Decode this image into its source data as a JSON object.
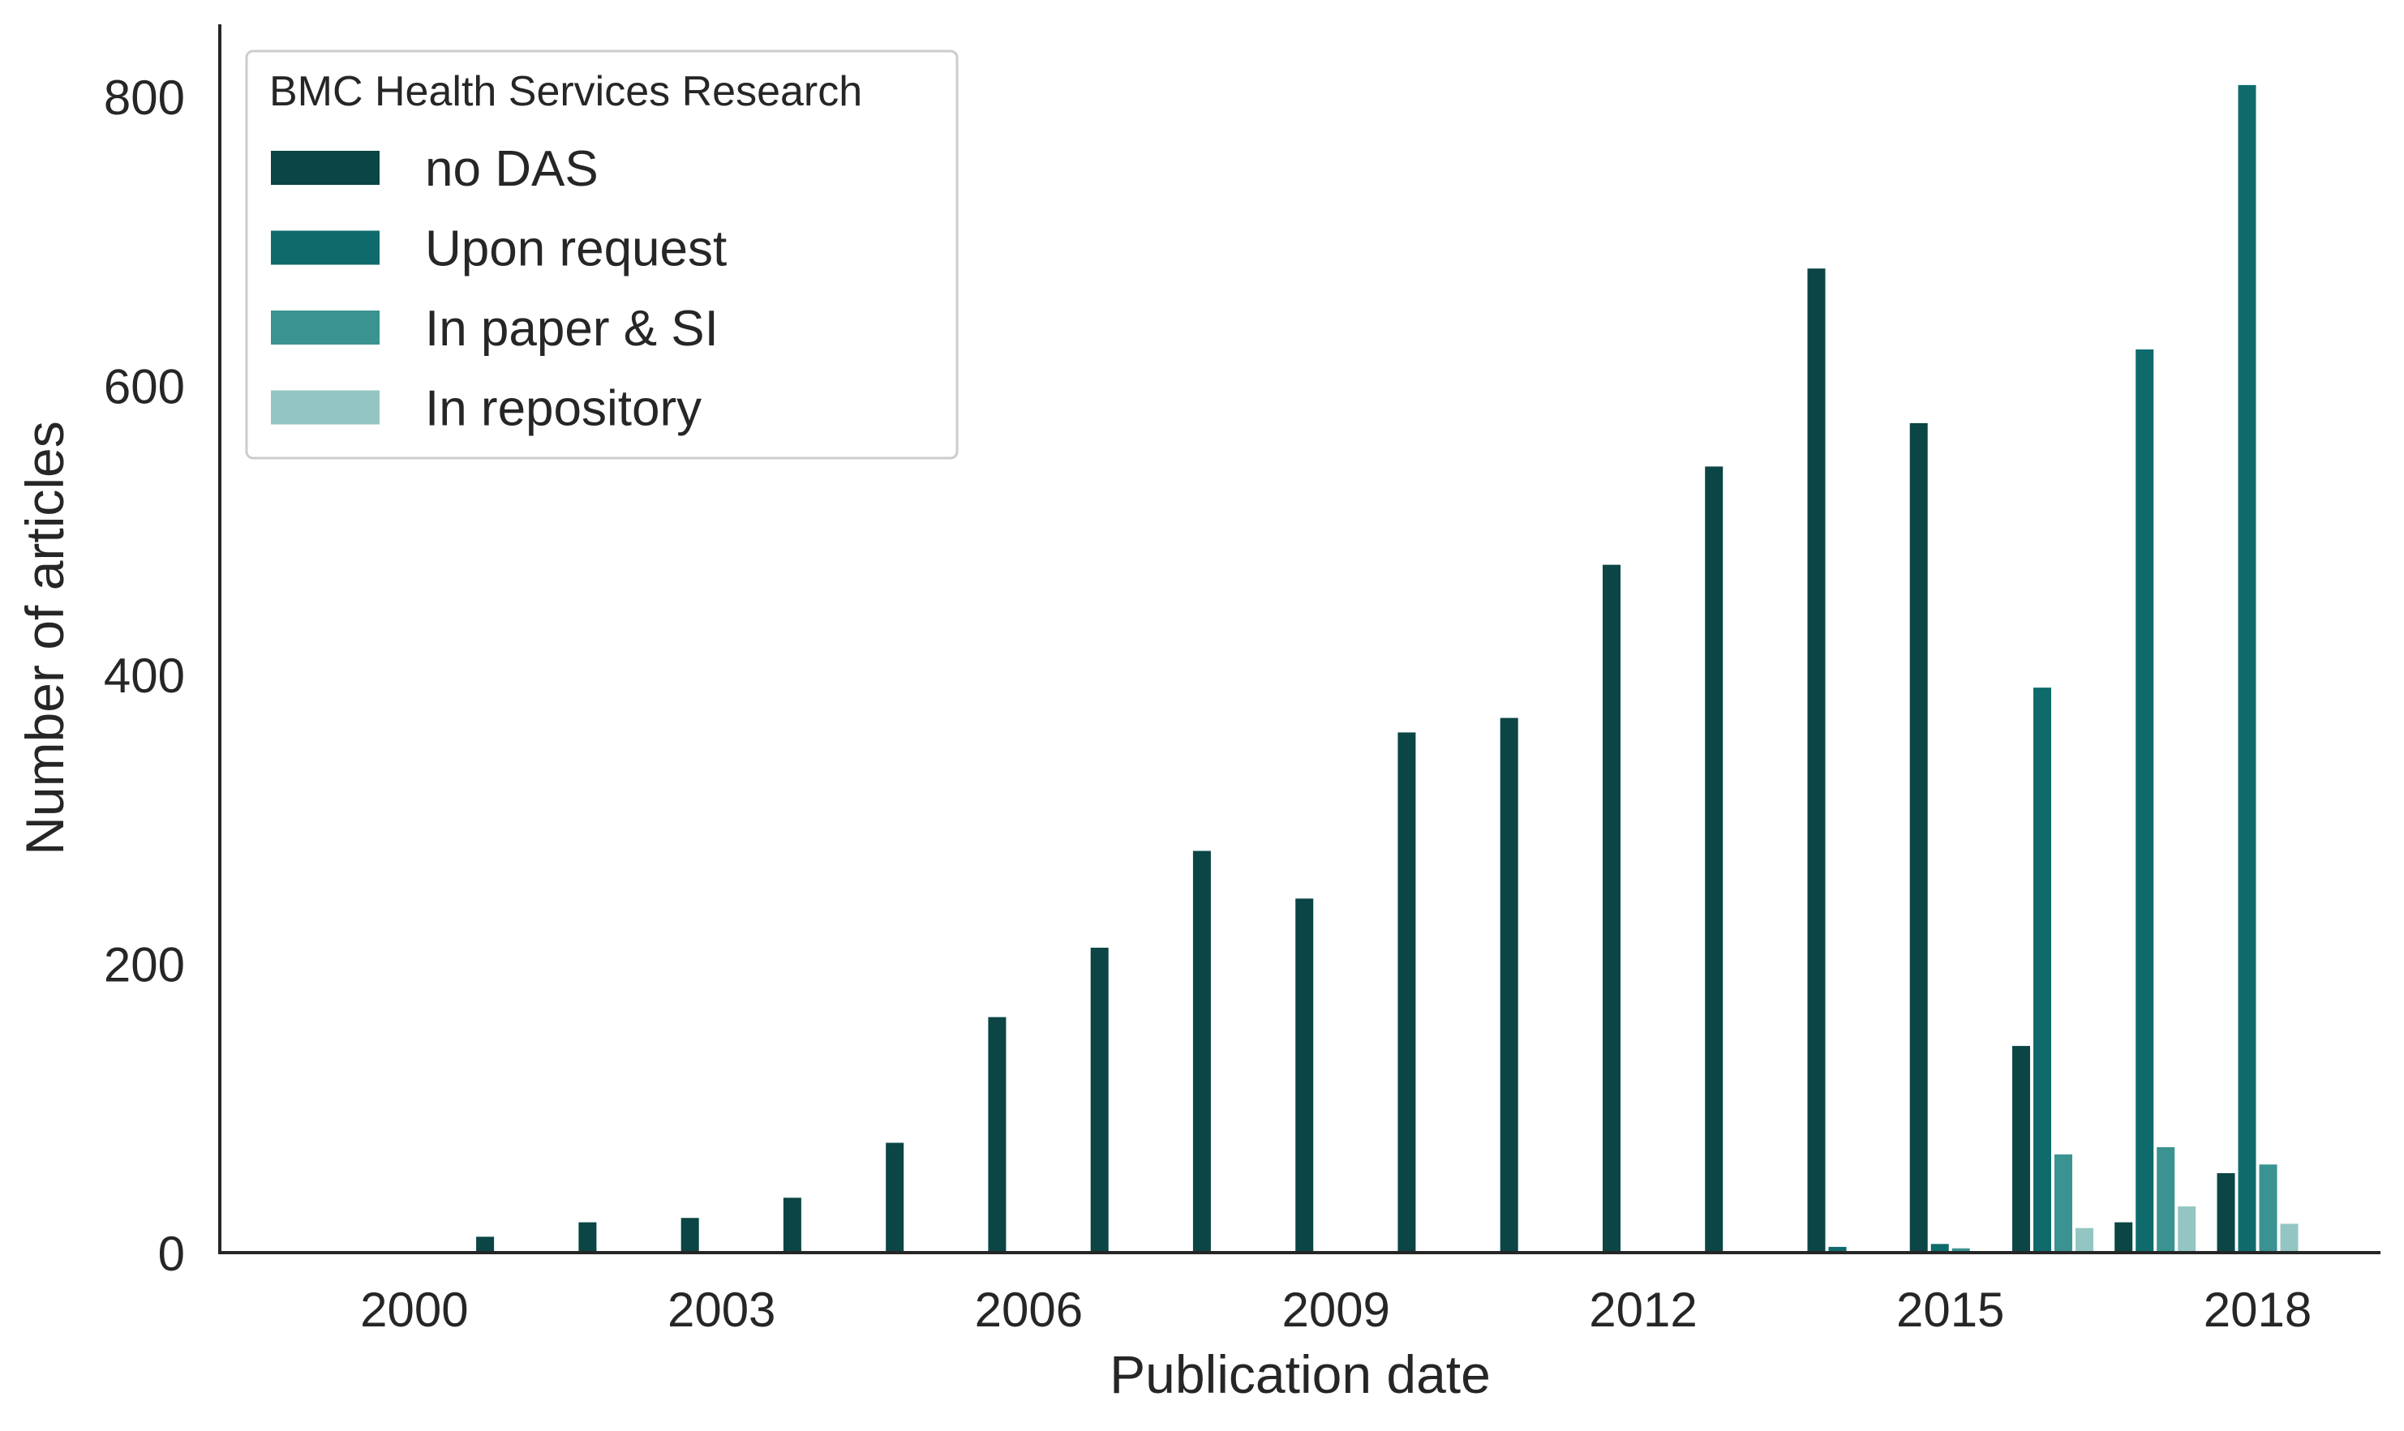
{
  "chart_data": {
    "type": "bar",
    "xlabel": "Publication date",
    "ylabel": "Number of articles",
    "ylim": [
      0,
      850
    ],
    "xlim": [
      1998.1,
      2019.2
    ],
    "grid": false,
    "y_ticks": [
      0,
      200,
      400,
      600,
      800
    ],
    "x_ticks": [
      2000,
      2003,
      2006,
      2009,
      2012,
      2015,
      2018
    ],
    "legend": {
      "title": "BMC Health Services Research",
      "placement": "top-left"
    },
    "series": [
      {
        "name": "no DAS",
        "color": "#0b4545",
        "x": [
          2001,
          2002,
          2003,
          2004,
          2005,
          2006,
          2007,
          2008,
          2009,
          2010,
          2011,
          2012,
          2013,
          2014,
          2015,
          2016,
          2017,
          2018
        ],
        "values": [
          11,
          21,
          24,
          38,
          76,
          163,
          211,
          278,
          245,
          360,
          370,
          476,
          544,
          681,
          574,
          143,
          21,
          55
        ]
      },
      {
        "name": "Upon request",
        "color": "#0f6b6b",
        "x": [
          2014,
          2015,
          2016,
          2017,
          2018
        ],
        "values": [
          4,
          6,
          391,
          625,
          808
        ]
      },
      {
        "name": "In paper & SI",
        "color": "#3a9390",
        "x": [
          2015,
          2016,
          2017,
          2018
        ],
        "values": [
          3,
          68,
          73,
          61
        ]
      },
      {
        "name": "In repository",
        "color": "#93c6c3",
        "x": [
          2016,
          2017,
          2018
        ],
        "values": [
          17,
          32,
          20
        ]
      }
    ]
  }
}
